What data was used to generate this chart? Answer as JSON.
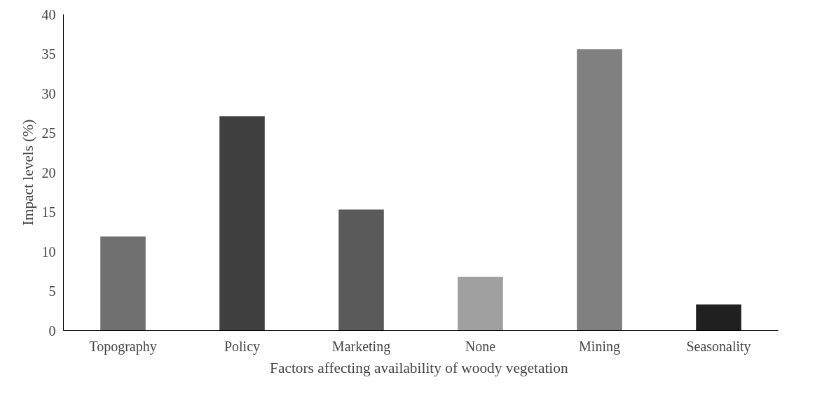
{
  "chart_data": {
    "type": "bar",
    "xlabel": "Factors affecting availability  of woody vegetation",
    "ylabel": "Impact levels (%)",
    "categories": [
      "Topography",
      "Policy",
      "Marketing",
      "None",
      "Mining",
      "Seasonality"
    ],
    "values": [
      11.9,
      27.1,
      15.3,
      6.8,
      35.6,
      3.3
    ],
    "colors": [
      "#707070",
      "#404040",
      "#5a5a5a",
      "#a0a0a0",
      "#808080",
      "#202020"
    ],
    "ylim": [
      0,
      40
    ],
    "yticks": [
      0,
      5,
      10,
      15,
      20,
      25,
      30,
      35,
      40
    ],
    "grid": false
  }
}
